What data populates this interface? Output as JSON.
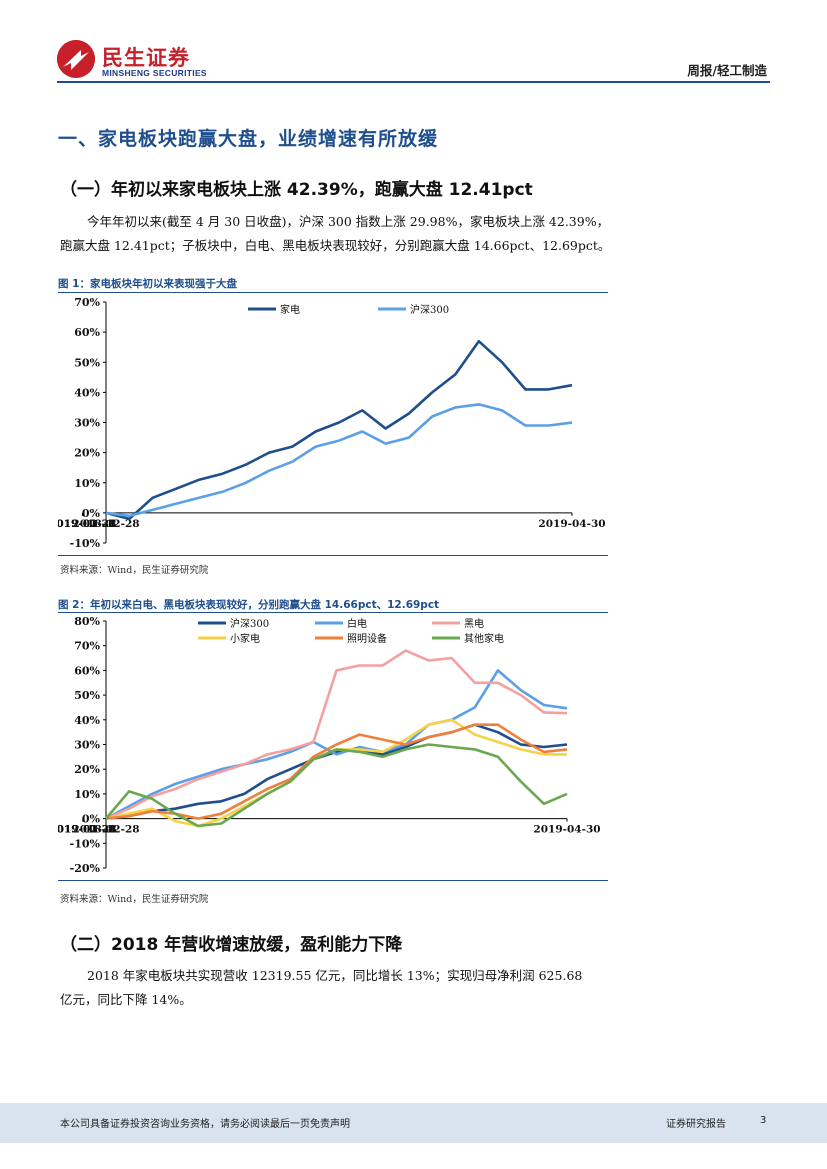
{
  "header": {
    "logo_cn": "民生证券",
    "logo_en": "MINSHENG SECURITIES",
    "section": "周报/轻工制造"
  },
  "h1": "一、家电板块跑赢大盘，业绩增速有所放缓",
  "s1": {
    "title": "（一）年初以来家电板块上涨 42.39%，跑赢大盘 12.41pct",
    "para_line1": "今年年初以来(截至 4 月 30 日收盘)，沪深 300 指数上涨 29.98%，家电板块上涨 42.39%，",
    "para_line2": "跑赢大盘 12.41pct；子板块中，白电、黑电板块表现较好，分别跑赢大盘 14.66pct、12.69pct。"
  },
  "fig1": {
    "caption": "图 1：家电板块年初以来表现强于大盘",
    "source": "资料来源：Wind，民生证券研究院"
  },
  "fig2": {
    "caption": "图 2：年初以来白电、黑电板块表现较好，分别跑赢大盘 14.66pct、12.69pct",
    "source": "资料来源：Wind，民生证券研究院"
  },
  "s2": {
    "title": "（二）2018 年营收增速放缓，盈利能力下降",
    "para_line1": "2018 年家电板块共实现营收 12319.55 亿元，同比增长 13%；实现归母净利润 625.68",
    "para_line2": "亿元，同比下降 14%。"
  },
  "footer": {
    "disclaimer": "本公司具备证券投资咨询业务资格，请务必阅读最后一页免责声明",
    "report_type": "证券研究报告",
    "page": "3"
  },
  "chart_data": [
    {
      "type": "line",
      "title": "家电板块年初以来表现强于大盘",
      "x": [
        "2018-12-28",
        "2019-01-04",
        "2019-01-11",
        "2019-01-18",
        "2019-01-25",
        "2019-02-01",
        "2019-02-08",
        "2019-02-15",
        "2019-02-22",
        "2019-03-01",
        "2019-03-08",
        "2019-03-15",
        "2019-03-22",
        "2019-03-29",
        "2019-04-05",
        "2019-04-12",
        "2019-04-17",
        "2019-04-19",
        "2019-04-22",
        "2019-04-26",
        "2019-04-30"
      ],
      "xticks": [
        "2018-12-28",
        "2019-01-28",
        "2019-02-28",
        "2019-03-31",
        "2019-04-30"
      ],
      "yticks": [
        "-10%",
        "0%",
        "10%",
        "20%",
        "30%",
        "40%",
        "50%",
        "60%",
        "70%"
      ],
      "ylim": [
        -10,
        70
      ],
      "series": [
        {
          "name": "家电",
          "color": "#1f4e8c",
          "values": [
            0,
            -2,
            5,
            8,
            11,
            13,
            16,
            20,
            22,
            27,
            30,
            34,
            28,
            33,
            40,
            46,
            57,
            50,
            41,
            41,
            42.39
          ]
        },
        {
          "name": "沪深300",
          "color": "#5aa0e6",
          "values": [
            0,
            -1,
            1,
            3,
            5,
            7,
            10,
            14,
            17,
            22,
            24,
            27,
            23,
            25,
            32,
            35,
            36,
            34,
            29,
            29,
            29.98
          ]
        }
      ]
    },
    {
      "type": "line",
      "title": "年初以来白电、黑电板块表现较好",
      "x": [
        "2018-12-28",
        "2019-01-04",
        "2019-01-11",
        "2019-01-18",
        "2019-01-25",
        "2019-02-01",
        "2019-02-08",
        "2019-02-15",
        "2019-02-22",
        "2019-03-01",
        "2019-03-08",
        "2019-03-15",
        "2019-03-22",
        "2019-03-29",
        "2019-04-05",
        "2019-04-12",
        "2019-04-17",
        "2019-04-19",
        "2019-04-22",
        "2019-04-26",
        "2019-04-30"
      ],
      "xticks": [
        "2018-12-28",
        "2019-01-28",
        "2019-02-28",
        "2019-03-31",
        "2019-04-30"
      ],
      "yticks": [
        "-20%",
        "-10%",
        "0%",
        "10%",
        "20%",
        "30%",
        "40%",
        "50%",
        "60%",
        "70%",
        "80%"
      ],
      "ylim": [
        -20,
        80
      ],
      "series": [
        {
          "name": "沪深300",
          "color": "#1f4e8c",
          "values": [
            0,
            1,
            3,
            4,
            6,
            7,
            10,
            16,
            20,
            24,
            27,
            28,
            26,
            29,
            33,
            35,
            38,
            35,
            30,
            29,
            29.98
          ]
        },
        {
          "name": "白电",
          "color": "#5aa0e6",
          "values": [
            0,
            5,
            10,
            14,
            17,
            20,
            22,
            24,
            27,
            31,
            26,
            29,
            27,
            30,
            38,
            40,
            45,
            60,
            52,
            46,
            44.64
          ]
        },
        {
          "name": "黑电",
          "color": "#f4a0a0",
          "values": [
            0,
            4,
            9,
            12,
            16,
            19,
            22,
            26,
            28,
            31,
            60,
            62,
            62,
            68,
            64,
            65,
            55,
            55,
            50,
            43,
            42.67
          ]
        },
        {
          "name": "小家电",
          "color": "#f5d24a",
          "values": [
            0,
            2,
            4,
            -1,
            -3,
            0,
            5,
            10,
            15,
            24,
            28,
            28,
            27,
            32,
            38,
            40,
            34,
            31,
            28,
            26,
            26
          ]
        },
        {
          "name": "照明设备",
          "color": "#f07f3a",
          "values": [
            0,
            1,
            3,
            2,
            0,
            2,
            7,
            12,
            16,
            25,
            30,
            34,
            32,
            30,
            33,
            35,
            38,
            38,
            32,
            27,
            28
          ]
        },
        {
          "name": "其他家电",
          "color": "#6aa84f",
          "values": [
            0,
            11,
            8,
            2,
            -3,
            -2,
            4,
            10,
            15,
            24,
            28,
            27,
            25,
            28,
            30,
            29,
            28,
            25,
            15,
            6,
            10
          ]
        }
      ]
    }
  ]
}
